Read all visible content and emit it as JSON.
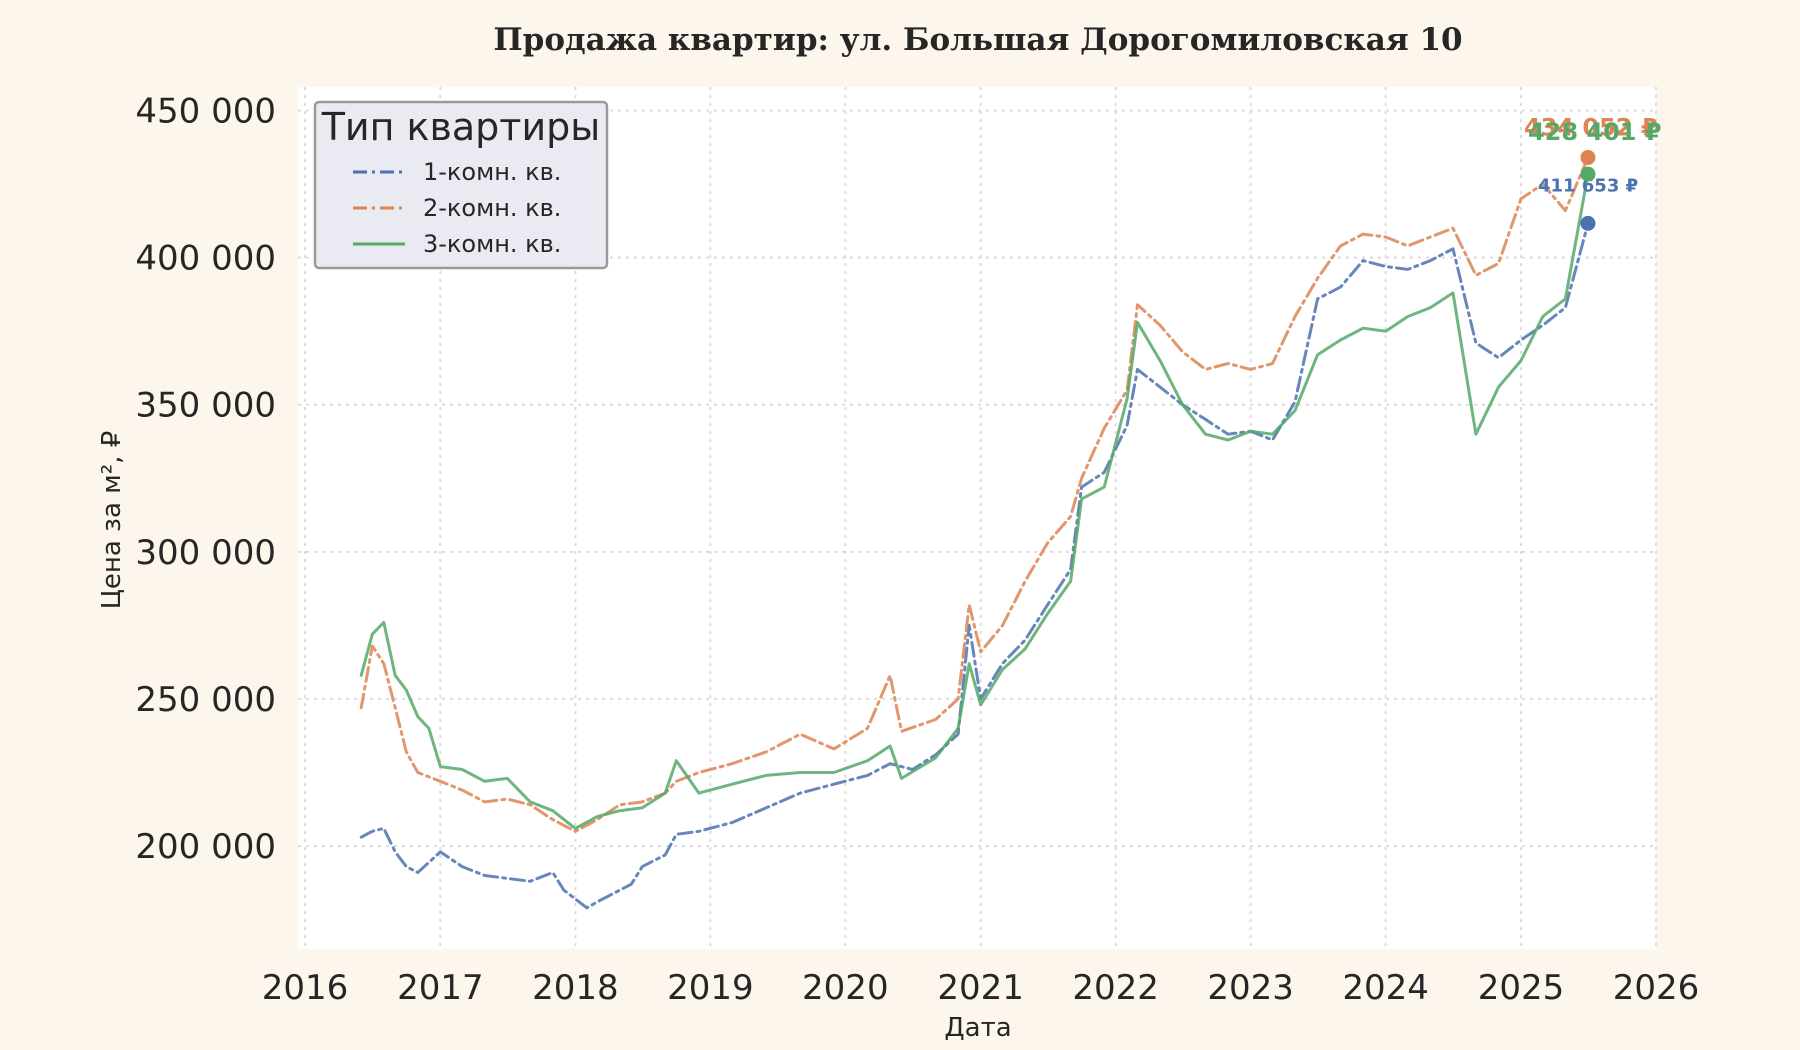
{
  "chart_data": {
    "type": "line",
    "title": "Продажа квартир: ул. Большая Дорогомиловская 10",
    "xlabel": "Дата",
    "ylabel": "Цена за м², ₽",
    "xlim": [
      "2016-01-01",
      "2026-01-01"
    ],
    "ylim": [
      165000,
      458000
    ],
    "x_ticks": [
      "2016",
      "2017",
      "2018",
      "2019",
      "2020",
      "2021",
      "2022",
      "2023",
      "2024",
      "2025",
      "2026"
    ],
    "y_ticks": [
      {
        "value": 200000,
        "label": "200 000"
      },
      {
        "value": 250000,
        "label": "250 000"
      },
      {
        "value": 300000,
        "label": "300 000"
      },
      {
        "value": 350000,
        "label": "350 000"
      },
      {
        "value": 400000,
        "label": "400 000"
      },
      {
        "value": 450000,
        "label": "450 000"
      }
    ],
    "grid": true,
    "legend": {
      "title": "Тип квартиры",
      "position": "top-left"
    },
    "series": [
      {
        "name": "1-комн. кв.",
        "color": "#4c72b0",
        "style": "dashdot",
        "points": [
          [
            "2016-06-01",
            203000
          ],
          [
            "2016-07-01",
            205000
          ],
          [
            "2016-08-01",
            206000
          ],
          [
            "2016-09-01",
            198000
          ],
          [
            "2016-10-01",
            193000
          ],
          [
            "2016-11-01",
            191000
          ],
          [
            "2017-01-01",
            198000
          ],
          [
            "2017-03-01",
            193000
          ],
          [
            "2017-05-01",
            190000
          ],
          [
            "2017-07-01",
            189000
          ],
          [
            "2017-09-01",
            188000
          ],
          [
            "2017-11-01",
            191000
          ],
          [
            "2017-12-01",
            185000
          ],
          [
            "2018-02-01",
            179000
          ],
          [
            "2018-03-01",
            181000
          ],
          [
            "2018-05-01",
            185000
          ],
          [
            "2018-06-01",
            187000
          ],
          [
            "2018-07-01",
            193000
          ],
          [
            "2018-09-01",
            197000
          ],
          [
            "2018-10-01",
            204000
          ],
          [
            "2018-12-01",
            205000
          ],
          [
            "2019-03-01",
            208000
          ],
          [
            "2019-06-01",
            213000
          ],
          [
            "2019-09-01",
            218000
          ],
          [
            "2019-12-01",
            221000
          ],
          [
            "2020-03-01",
            224000
          ],
          [
            "2020-05-01",
            228000
          ],
          [
            "2020-07-01",
            226000
          ],
          [
            "2020-09-01",
            231000
          ],
          [
            "2020-11-01",
            238000
          ],
          [
            "2020-12-01",
            275000
          ],
          [
            "2021-01-01",
            250000
          ],
          [
            "2021-03-01",
            262000
          ],
          [
            "2021-05-01",
            270000
          ],
          [
            "2021-07-01",
            282000
          ],
          [
            "2021-09-01",
            294000
          ],
          [
            "2021-10-01",
            322000
          ],
          [
            "2021-12-01",
            327000
          ],
          [
            "2022-02-01",
            343000
          ],
          [
            "2022-03-01",
            362000
          ],
          [
            "2022-05-01",
            356000
          ],
          [
            "2022-07-01",
            350000
          ],
          [
            "2022-09-01",
            345000
          ],
          [
            "2022-11-01",
            340000
          ],
          [
            "2023-01-01",
            341000
          ],
          [
            "2023-03-01",
            338000
          ],
          [
            "2023-05-01",
            351000
          ],
          [
            "2023-07-01",
            386000
          ],
          [
            "2023-09-01",
            390000
          ],
          [
            "2023-11-01",
            399000
          ],
          [
            "2024-01-01",
            397000
          ],
          [
            "2024-03-01",
            396000
          ],
          [
            "2024-05-01",
            399000
          ],
          [
            "2024-07-01",
            403000
          ],
          [
            "2024-09-01",
            371000
          ],
          [
            "2024-11-01",
            366000
          ],
          [
            "2025-01-01",
            372000
          ],
          [
            "2025-03-01",
            377000
          ],
          [
            "2025-05-01",
            383000
          ],
          [
            "2025-07-01",
            411653
          ]
        ]
      },
      {
        "name": "2-комн. кв.",
        "color": "#dd8452",
        "style": "dashdot",
        "points": [
          [
            "2016-06-01",
            247000
          ],
          [
            "2016-07-01",
            268000
          ],
          [
            "2016-08-01",
            262000
          ],
          [
            "2016-09-01",
            247000
          ],
          [
            "2016-10-01",
            232000
          ],
          [
            "2016-11-01",
            225000
          ],
          [
            "2017-01-01",
            222000
          ],
          [
            "2017-03-01",
            219000
          ],
          [
            "2017-05-01",
            215000
          ],
          [
            "2017-07-01",
            216000
          ],
          [
            "2017-09-01",
            214000
          ],
          [
            "2017-11-01",
            209000
          ],
          [
            "2018-01-01",
            205000
          ],
          [
            "2018-03-01",
            209000
          ],
          [
            "2018-05-01",
            214000
          ],
          [
            "2018-07-01",
            215000
          ],
          [
            "2018-09-01",
            218000
          ],
          [
            "2018-10-01",
            222000
          ],
          [
            "2018-12-01",
            225000
          ],
          [
            "2019-03-01",
            228000
          ],
          [
            "2019-06-01",
            232000
          ],
          [
            "2019-09-01",
            238000
          ],
          [
            "2019-12-01",
            233000
          ],
          [
            "2020-03-01",
            240000
          ],
          [
            "2020-05-01",
            258000
          ],
          [
            "2020-06-01",
            239000
          ],
          [
            "2020-09-01",
            243000
          ],
          [
            "2020-11-01",
            250000
          ],
          [
            "2020-12-01",
            282000
          ],
          [
            "2021-01-01",
            266000
          ],
          [
            "2021-03-01",
            275000
          ],
          [
            "2021-05-01",
            290000
          ],
          [
            "2021-07-01",
            303000
          ],
          [
            "2021-09-01",
            312000
          ],
          [
            "2021-10-01",
            325000
          ],
          [
            "2021-12-01",
            342000
          ],
          [
            "2022-02-01",
            355000
          ],
          [
            "2022-03-01",
            384000
          ],
          [
            "2022-05-01",
            377000
          ],
          [
            "2022-07-01",
            368000
          ],
          [
            "2022-09-01",
            362000
          ],
          [
            "2022-11-01",
            364000
          ],
          [
            "2023-01-01",
            362000
          ],
          [
            "2023-03-01",
            364000
          ],
          [
            "2023-05-01",
            380000
          ],
          [
            "2023-07-01",
            393000
          ],
          [
            "2023-09-01",
            404000
          ],
          [
            "2023-11-01",
            408000
          ],
          [
            "2024-01-01",
            407000
          ],
          [
            "2024-03-01",
            404000
          ],
          [
            "2024-05-01",
            407000
          ],
          [
            "2024-07-01",
            410000
          ],
          [
            "2024-09-01",
            394000
          ],
          [
            "2024-11-01",
            398000
          ],
          [
            "2025-01-01",
            420000
          ],
          [
            "2025-03-01",
            425000
          ],
          [
            "2025-05-01",
            416000
          ],
          [
            "2025-07-01",
            434052
          ]
        ]
      },
      {
        "name": "3-комн. кв.",
        "color": "#55a868",
        "style": "solid",
        "points": [
          [
            "2016-06-01",
            258000
          ],
          [
            "2016-07-01",
            272000
          ],
          [
            "2016-08-01",
            276000
          ],
          [
            "2016-09-01",
            258000
          ],
          [
            "2016-10-01",
            253000
          ],
          [
            "2016-11-01",
            244000
          ],
          [
            "2016-12-01",
            240000
          ],
          [
            "2017-01-01",
            227000
          ],
          [
            "2017-03-01",
            226000
          ],
          [
            "2017-05-01",
            222000
          ],
          [
            "2017-07-01",
            223000
          ],
          [
            "2017-09-01",
            215000
          ],
          [
            "2017-11-01",
            212000
          ],
          [
            "2018-01-01",
            206000
          ],
          [
            "2018-03-01",
            210000
          ],
          [
            "2018-05-01",
            212000
          ],
          [
            "2018-07-01",
            213000
          ],
          [
            "2018-09-01",
            218000
          ],
          [
            "2018-10-01",
            229000
          ],
          [
            "2018-12-01",
            218000
          ],
          [
            "2019-03-01",
            221000
          ],
          [
            "2019-06-01",
            224000
          ],
          [
            "2019-09-01",
            225000
          ],
          [
            "2019-12-01",
            225000
          ],
          [
            "2020-03-01",
            229000
          ],
          [
            "2020-05-01",
            234000
          ],
          [
            "2020-06-01",
            223000
          ],
          [
            "2020-09-01",
            230000
          ],
          [
            "2020-11-01",
            240000
          ],
          [
            "2020-12-01",
            262000
          ],
          [
            "2021-01-01",
            248000
          ],
          [
            "2021-03-01",
            260000
          ],
          [
            "2021-05-01",
            267000
          ],
          [
            "2021-07-01",
            279000
          ],
          [
            "2021-09-01",
            290000
          ],
          [
            "2021-10-01",
            318000
          ],
          [
            "2021-12-01",
            322000
          ],
          [
            "2022-02-01",
            352000
          ],
          [
            "2022-03-01",
            378000
          ],
          [
            "2022-05-01",
            365000
          ],
          [
            "2022-07-01",
            350000
          ],
          [
            "2022-09-01",
            340000
          ],
          [
            "2022-11-01",
            338000
          ],
          [
            "2023-01-01",
            341000
          ],
          [
            "2023-03-01",
            340000
          ],
          [
            "2023-05-01",
            348000
          ],
          [
            "2023-07-01",
            367000
          ],
          [
            "2023-09-01",
            372000
          ],
          [
            "2023-11-01",
            376000
          ],
          [
            "2024-01-01",
            375000
          ],
          [
            "2024-03-01",
            380000
          ],
          [
            "2024-05-01",
            383000
          ],
          [
            "2024-07-01",
            388000
          ],
          [
            "2024-09-01",
            340000
          ],
          [
            "2024-11-01",
            356000
          ],
          [
            "2025-01-01",
            365000
          ],
          [
            "2025-03-01",
            380000
          ],
          [
            "2025-05-01",
            386000
          ],
          [
            "2025-07-01",
            428401
          ]
        ]
      }
    ],
    "end_labels": [
      {
        "series": "1-комн. кв.",
        "text": "411 653 ₽",
        "value": 411653
      },
      {
        "series": "2-комн. кв.",
        "text": "434 052 ₽",
        "value": 434052
      },
      {
        "series": "3-комн. кв.",
        "text": "428 401 ₽",
        "value": 428401
      }
    ]
  }
}
